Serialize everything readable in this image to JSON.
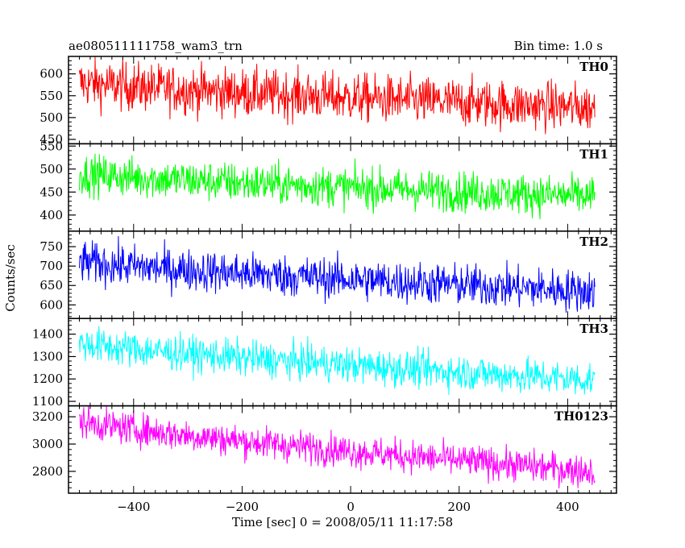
{
  "header": {
    "title": "ae080511111758_wam3_trn",
    "bin_time": "Bin time: 1.0 s"
  },
  "chart_data": {
    "type": "line",
    "title": "ae080511111758_wam3_trn",
    "xlabel": "Time [sec] 0 = 2008/05/11 11:17:58",
    "ylabel": "Counts/sec",
    "xlim": [
      -520,
      490
    ],
    "x_range": [
      -500,
      450
    ],
    "x_step": 1.0,
    "xticks": [
      -400,
      -200,
      0,
      200,
      400
    ],
    "grid": false,
    "panels": [
      {
        "name": "TH0",
        "color": "#ff0000",
        "ylim": [
          440,
          640
        ],
        "yticks": [
          450,
          500,
          550,
          600
        ],
        "trend_start": 580,
        "trend_end": 522,
        "noise": 28
      },
      {
        "name": "TH1",
        "color": "#00ff00",
        "ylim": [
          365,
          555
        ],
        "yticks": [
          400,
          450,
          500,
          550
        ],
        "trend_start": 490,
        "trend_end": 440,
        "noise": 22
      },
      {
        "name": "TH2",
        "color": "#0000ff",
        "ylim": [
          565,
          790
        ],
        "yticks": [
          600,
          650,
          700,
          750
        ],
        "trend_start": 712,
        "trend_end": 635,
        "noise": 27
      },
      {
        "name": "TH3",
        "color": "#00ffff",
        "ylim": [
          1080,
          1470
        ],
        "yticks": [
          1100,
          1200,
          1300,
          1400
        ],
        "trend_start": 1360,
        "trend_end": 1195,
        "noise": 40
      },
      {
        "name": "TH0123",
        "color": "#ff00ff",
        "ylim": [
          2640,
          3280
        ],
        "yticks": [
          2800,
          3000,
          3200
        ],
        "trend_start": 3170,
        "trend_end": 2800,
        "noise": 60
      }
    ]
  }
}
